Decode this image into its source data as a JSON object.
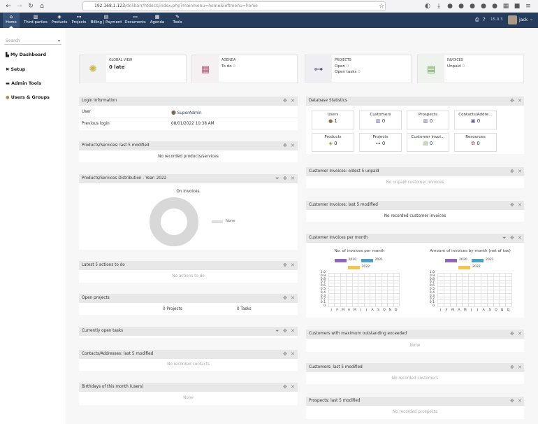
{
  "browser": {
    "url_host": "192.168.1.123",
    "url_path": "/dolibarr/htdocs/index.php?mainmenu=home&leftmenu=home"
  },
  "topnav": {
    "items": [
      {
        "label": "Home",
        "icon": "home-icon"
      },
      {
        "label": "Third-parties",
        "icon": "building-icon"
      },
      {
        "label": "Products",
        "icon": "cube-icon"
      },
      {
        "label": "Projects",
        "icon": "sitemap-icon"
      },
      {
        "label": "Billing | Payment",
        "icon": "invoice-icon"
      },
      {
        "label": "Documents",
        "icon": "folder-icon"
      },
      {
        "label": "Agenda",
        "icon": "calendar-icon"
      },
      {
        "label": "Tools",
        "icon": "wrench-icon"
      }
    ],
    "version": "15.0.3",
    "user": "jack"
  },
  "sidebar": {
    "search_placeholder": "Search",
    "items": [
      {
        "label": "My Dashboard"
      },
      {
        "label": "Setup"
      },
      {
        "label": "Admin Tools"
      },
      {
        "label": "Users & Groups"
      }
    ]
  },
  "cards": {
    "global": {
      "title": "GLOBAL VIEW",
      "value": "0 late"
    },
    "agenda": {
      "title": "AGENDA",
      "line1_label": "To do",
      "line1_value": "0"
    },
    "projects": {
      "title": "PROJECTS",
      "line1_label": "Open",
      "line1_value": "0",
      "line2_label": "Open tasks",
      "line2_value": "0"
    },
    "invoices": {
      "title": "INVOICES",
      "line1_label": "Unpaid",
      "line1_value": "0"
    }
  },
  "login": {
    "header": "Login Information",
    "user_label": "User",
    "user_value": "SuperAdmin",
    "prev_label": "Previous login",
    "prev_value": "08/01/2022 10:38 AM"
  },
  "products_modified": {
    "header": "Products/Services: last 5 modified",
    "empty": "No recorded products/services"
  },
  "products_dist": {
    "header": "Products/Services Distribution - Year: 2022",
    "chart_title": "On Invoices",
    "legend": "None"
  },
  "actions": {
    "header": "Latest 5 actions to do",
    "empty": "No actions to do"
  },
  "open_projects": {
    "header": "Open projects",
    "projects": "0 Projects",
    "tasks": "0 Tasks"
  },
  "open_tasks": {
    "header": "Currently open tasks"
  },
  "contacts": {
    "header": "Contacts/Addresses: last 5 modified",
    "empty": "No recorded contacts"
  },
  "birthdays": {
    "header": "Birthdays of this month (users)",
    "empty": "None"
  },
  "db_stats": {
    "header": "Database Statistics",
    "items": [
      {
        "label": "Users",
        "value": "1",
        "icon": "user-icon"
      },
      {
        "label": "Customers",
        "value": "0",
        "icon": "building-icon"
      },
      {
        "label": "Prospects",
        "value": "0",
        "icon": "building-icon"
      },
      {
        "label": "Contacts/Addre…",
        "value": "0",
        "icon": "address-card-icon"
      },
      {
        "label": "Products",
        "value": "0",
        "icon": "cube-icon"
      },
      {
        "label": "Projects",
        "value": "0",
        "icon": "sitemap-icon"
      },
      {
        "label": "Customer invoi…",
        "value": "0",
        "icon": "invoice-icon"
      },
      {
        "label": "Resources",
        "value": "0",
        "icon": "resource-icon"
      }
    ]
  },
  "unpaid": {
    "header": "Customer Invoices: oldest 5 unpaid",
    "empty": "No unpaid customer invoices"
  },
  "inv_modified": {
    "header": "Customer Invoices: last 5 modified",
    "empty": "No recorded customer invoices"
  },
  "inv_month": {
    "header": "Customer Invoices per month"
  },
  "max_outstanding": {
    "header": "Customers with maximum outstanding exceeded",
    "empty": "None"
  },
  "customers_modified": {
    "header": "Customers: last 5 modified",
    "empty": "No recorded customers"
  },
  "prospects_modified": {
    "header": "Prospects: last 5 modified",
    "empty": "No recorded prospects"
  },
  "colors": {
    "nav": "#263c5c",
    "series_2020": "#9266b8",
    "series_2021": "#4ba0c6",
    "series_2022": "#f3c54e"
  },
  "chart_data": [
    {
      "type": "bar",
      "title": "No. of invoices per month",
      "categories": [
        "J",
        "F",
        "M",
        "A",
        "M",
        "J",
        "J",
        "A",
        "S",
        "O",
        "N",
        "D"
      ],
      "series": [
        {
          "name": "2020",
          "values": [
            0,
            0,
            0,
            0,
            0,
            0,
            0,
            0,
            0,
            0,
            0,
            0
          ]
        },
        {
          "name": "2021",
          "values": [
            0,
            0,
            0,
            0,
            0,
            0,
            0,
            0,
            0,
            0,
            0,
            0
          ]
        },
        {
          "name": "2022",
          "values": [
            0,
            0,
            0,
            0,
            0,
            0,
            0,
            0,
            0,
            0,
            0,
            0
          ]
        }
      ],
      "yticks": [
        "1.0",
        "0.9",
        "0.8",
        "0.7",
        "0.6",
        "0.5",
        "0.4",
        "0.3",
        "0.2",
        "0.1",
        "0"
      ],
      "ylim": [
        0,
        1
      ]
    },
    {
      "type": "bar",
      "title": "Amount of invoices by month (net of tax)",
      "categories": [
        "J",
        "F",
        "M",
        "A",
        "M",
        "J",
        "J",
        "A",
        "S",
        "O",
        "N",
        "D"
      ],
      "series": [
        {
          "name": "2020",
          "values": [
            0,
            0,
            0,
            0,
            0,
            0,
            0,
            0,
            0,
            0,
            0,
            0
          ]
        },
        {
          "name": "2021",
          "values": [
            0,
            0,
            0,
            0,
            0,
            0,
            0,
            0,
            0,
            0,
            0,
            0
          ]
        },
        {
          "name": "2022",
          "values": [
            0,
            0,
            0,
            0,
            0,
            0,
            0,
            0,
            0,
            0,
            0,
            0
          ]
        }
      ],
      "yticks": [
        "1.0",
        "0.9",
        "0.8",
        "0.7",
        "0.6",
        "0.5",
        "0.4",
        "0.3",
        "0.2",
        "0.1",
        "0"
      ],
      "ylim": [
        0,
        1
      ]
    }
  ]
}
